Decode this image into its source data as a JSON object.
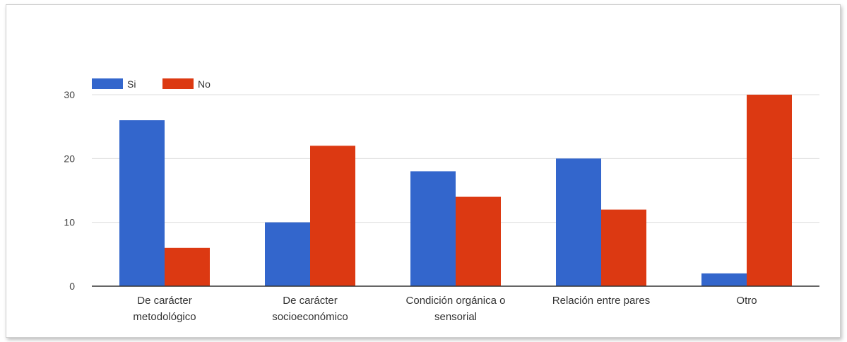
{
  "chart_data": {
    "type": "bar",
    "categories": [
      [
        "De carácter",
        "metodológico"
      ],
      [
        "De carácter",
        "socioeconómico"
      ],
      [
        "Condición orgánica o",
        "sensorial"
      ],
      [
        "Relación entre pares"
      ],
      [
        "Otro"
      ]
    ],
    "series": [
      {
        "name": "Si",
        "color": "#3366cc",
        "values": [
          26,
          10,
          18,
          20,
          2
        ]
      },
      {
        "name": "No",
        "color": "#dc3912",
        "values": [
          6,
          22,
          14,
          12,
          30
        ]
      }
    ],
    "ylim": [
      0,
      30
    ],
    "yticks": [
      "0",
      "10",
      "20",
      "30"
    ],
    "grid": true,
    "legend": "top-left"
  }
}
